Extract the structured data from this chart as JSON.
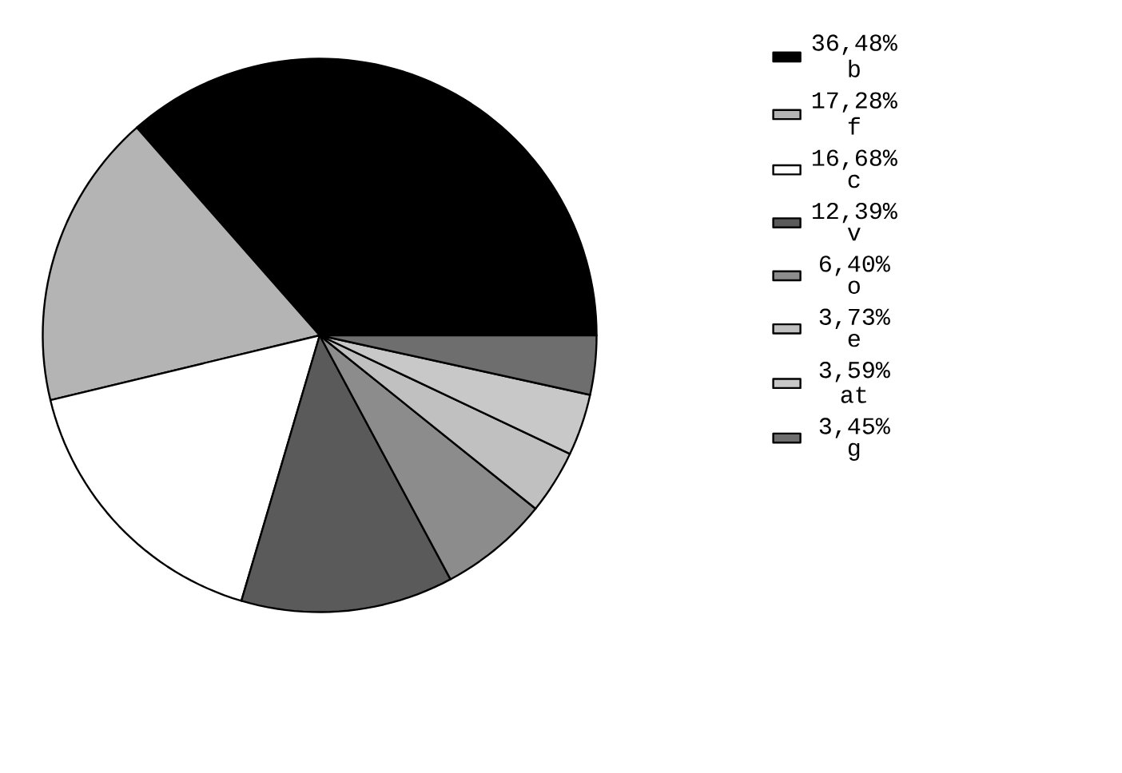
{
  "chart_data": {
    "type": "pie",
    "categories": [
      "b",
      "f",
      "c",
      "v",
      "o",
      "e",
      "at",
      "g"
    ],
    "values": [
      36.48,
      17.28,
      16.68,
      12.39,
      6.4,
      3.73,
      3.59,
      3.45
    ],
    "value_labels": [
      "36,48%",
      "17,28%",
      "16,68%",
      "12,39%",
      "6,40%",
      "3,73%",
      "3,59%",
      "3,45%"
    ],
    "colors": [
      "#000000",
      "#b4b4b4",
      "#ffffff",
      "#5a5a5a",
      "#8c8c8c",
      "#c0c0c0",
      "#c8c8c8",
      "#6e6e6e"
    ],
    "legend": "right"
  }
}
